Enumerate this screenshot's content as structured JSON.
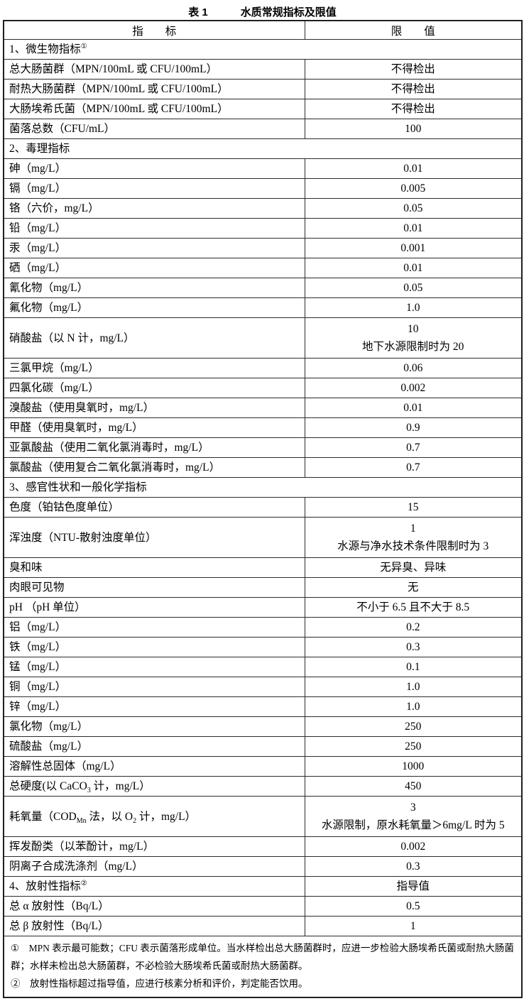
{
  "title": {
    "label": "表 1",
    "text": "水质常规指标及限值"
  },
  "table": {
    "headers": {
      "indicator": "指　　标",
      "limit": "限　　值"
    },
    "rows": [
      {
        "kind": "section",
        "indicator": [
          {
            "t": "1、微生物指标"
          },
          {
            "t": "①",
            "sup": true
          }
        ]
      },
      {
        "kind": "item",
        "indicator": [
          {
            "t": "总大肠菌群（MPN/100mL 或 CFU/100mL）"
          }
        ],
        "limit": [
          "不得检出"
        ]
      },
      {
        "kind": "item",
        "indicator": [
          {
            "t": "耐热大肠菌群（MPN/100mL 或 CFU/100mL）"
          }
        ],
        "limit": [
          "不得检出"
        ]
      },
      {
        "kind": "item",
        "indicator": [
          {
            "t": "大肠埃希氏菌（MPN/100mL 或 CFU/100mL）"
          }
        ],
        "limit": [
          "不得检出"
        ]
      },
      {
        "kind": "item",
        "indicator": [
          {
            "t": "菌落总数（CFU/mL）"
          }
        ],
        "limit": [
          "100"
        ]
      },
      {
        "kind": "section",
        "indicator": [
          {
            "t": "2、毒理指标"
          }
        ]
      },
      {
        "kind": "item",
        "indicator": [
          {
            "t": "砷（mg/L）"
          }
        ],
        "limit": [
          "0.01"
        ]
      },
      {
        "kind": "item",
        "indicator": [
          {
            "t": "镉（mg/L）"
          }
        ],
        "limit": [
          "0.005"
        ]
      },
      {
        "kind": "item",
        "indicator": [
          {
            "t": "铬（六价，mg/L）"
          }
        ],
        "limit": [
          "0.05"
        ]
      },
      {
        "kind": "item",
        "indicator": [
          {
            "t": "铅（mg/L）"
          }
        ],
        "limit": [
          "0.01"
        ]
      },
      {
        "kind": "item",
        "indicator": [
          {
            "t": "汞（mg/L）"
          }
        ],
        "limit": [
          "0.001"
        ]
      },
      {
        "kind": "item",
        "indicator": [
          {
            "t": "硒（mg/L）"
          }
        ],
        "limit": [
          "0.01"
        ]
      },
      {
        "kind": "item",
        "indicator": [
          {
            "t": "氰化物（mg/L）"
          }
        ],
        "limit": [
          "0.05"
        ]
      },
      {
        "kind": "item",
        "indicator": [
          {
            "t": "氟化物（mg/L）"
          }
        ],
        "limit": [
          "1.0"
        ]
      },
      {
        "kind": "item",
        "indicator": [
          {
            "t": "硝酸盐（以 N 计，mg/L）"
          }
        ],
        "limit": [
          "10",
          "地下水源限制时为 20"
        ]
      },
      {
        "kind": "item",
        "indicator": [
          {
            "t": "三氯甲烷（mg/L）"
          }
        ],
        "limit": [
          "0.06"
        ]
      },
      {
        "kind": "item",
        "indicator": [
          {
            "t": "四氯化碳（mg/L）"
          }
        ],
        "limit": [
          "0.002"
        ]
      },
      {
        "kind": "item",
        "indicator": [
          {
            "t": "溴酸盐（使用臭氧时，mg/L）"
          }
        ],
        "limit": [
          "0.01"
        ]
      },
      {
        "kind": "item",
        "indicator": [
          {
            "t": "甲醛（使用臭氧时，mg/L）"
          }
        ],
        "limit": [
          "0.9"
        ]
      },
      {
        "kind": "item",
        "indicator": [
          {
            "t": "亚氯酸盐（使用二氧化氯消毒时，mg/L）"
          }
        ],
        "limit": [
          "0.7"
        ]
      },
      {
        "kind": "item",
        "indicator": [
          {
            "t": "氯酸盐（使用复合二氧化氯消毒时，mg/L）"
          }
        ],
        "limit": [
          "0.7"
        ]
      },
      {
        "kind": "section",
        "indicator": [
          {
            "t": "3、感官性状和一般化学指标"
          }
        ]
      },
      {
        "kind": "item",
        "indicator": [
          {
            "t": "色度（铂钴色度单位）"
          }
        ],
        "limit": [
          "15"
        ]
      },
      {
        "kind": "item",
        "indicator": [
          {
            "t": "浑浊度（NTU-散射浊度单位）"
          }
        ],
        "limit": [
          "1",
          "水源与净水技术条件限制时为 3"
        ]
      },
      {
        "kind": "item",
        "indicator": [
          {
            "t": "臭和味"
          }
        ],
        "limit": [
          "无异臭、异味"
        ]
      },
      {
        "kind": "item",
        "indicator": [
          {
            "t": "肉眼可见物"
          }
        ],
        "limit": [
          "无"
        ]
      },
      {
        "kind": "item",
        "indicator": [
          {
            "t": "pH （pH 单位）"
          }
        ],
        "limit": [
          "不小于 6.5 且不大于 8.5"
        ]
      },
      {
        "kind": "item",
        "indicator": [
          {
            "t": "铝（mg/L）"
          }
        ],
        "limit": [
          "0.2"
        ]
      },
      {
        "kind": "item",
        "indicator": [
          {
            "t": "铁（mg/L）"
          }
        ],
        "limit": [
          "0.3"
        ]
      },
      {
        "kind": "item",
        "indicator": [
          {
            "t": "锰（mg/L）"
          }
        ],
        "limit": [
          "0.1"
        ]
      },
      {
        "kind": "item",
        "indicator": [
          {
            "t": "铜（mg/L）"
          }
        ],
        "limit": [
          "1.0"
        ]
      },
      {
        "kind": "item",
        "indicator": [
          {
            "t": "锌（mg/L）"
          }
        ],
        "limit": [
          "1.0"
        ]
      },
      {
        "kind": "item",
        "indicator": [
          {
            "t": "氯化物（mg/L）"
          }
        ],
        "limit": [
          "250"
        ]
      },
      {
        "kind": "item",
        "indicator": [
          {
            "t": "硫酸盐（mg/L）"
          }
        ],
        "limit": [
          "250"
        ]
      },
      {
        "kind": "item",
        "indicator": [
          {
            "t": "溶解性总固体（mg/L）"
          }
        ],
        "limit": [
          "1000"
        ]
      },
      {
        "kind": "item",
        "indicator": [
          {
            "t": "总硬度(以 CaCO"
          },
          {
            "t": "3",
            "sub": true
          },
          {
            "t": " 计，mg/L）"
          }
        ],
        "limit": [
          "450"
        ]
      },
      {
        "kind": "item",
        "indicator": [
          {
            "t": "耗氧量（COD"
          },
          {
            "t": "Mn",
            "sub": true
          },
          {
            "t": " 法，以 O"
          },
          {
            "t": "2",
            "sub": true
          },
          {
            "t": " 计，mg/L）"
          }
        ],
        "limit": [
          "3",
          "水源限制，原水耗氧量＞6mg/L 时为 5"
        ]
      },
      {
        "kind": "item",
        "indicator": [
          {
            "t": "挥发酚类（以苯酚计，mg/L）"
          }
        ],
        "limit": [
          "0.002"
        ]
      },
      {
        "kind": "item",
        "indicator": [
          {
            "t": "阴离子合成洗涤剂（mg/L）"
          }
        ],
        "limit": [
          "0.3"
        ]
      },
      {
        "kind": "item",
        "indicator": [
          {
            "t": "4、放射性指标"
          },
          {
            "t": "②",
            "sup": true
          }
        ],
        "limit": [
          "指导值"
        ]
      },
      {
        "kind": "item",
        "indicator": [
          {
            "t": "总 α 放射性（Bq/L）"
          }
        ],
        "limit": [
          "0.5"
        ]
      },
      {
        "kind": "item",
        "indicator": [
          {
            "t": "总 β 放射性（Bq/L）"
          }
        ],
        "limit": [
          "1"
        ]
      }
    ]
  },
  "footnotes": [
    "①　MPN 表示最可能数；CFU 表示菌落形成单位。当水样检出总大肠菌群时，应进一步检验大肠埃希氏菌或耐热大肠菌群；水样未检出总大肠菌群，不必检验大肠埃希氏菌或耐热大肠菌群。",
    "②　放射性指标超过指导值，应进行核素分析和评价，判定能否饮用。"
  ]
}
